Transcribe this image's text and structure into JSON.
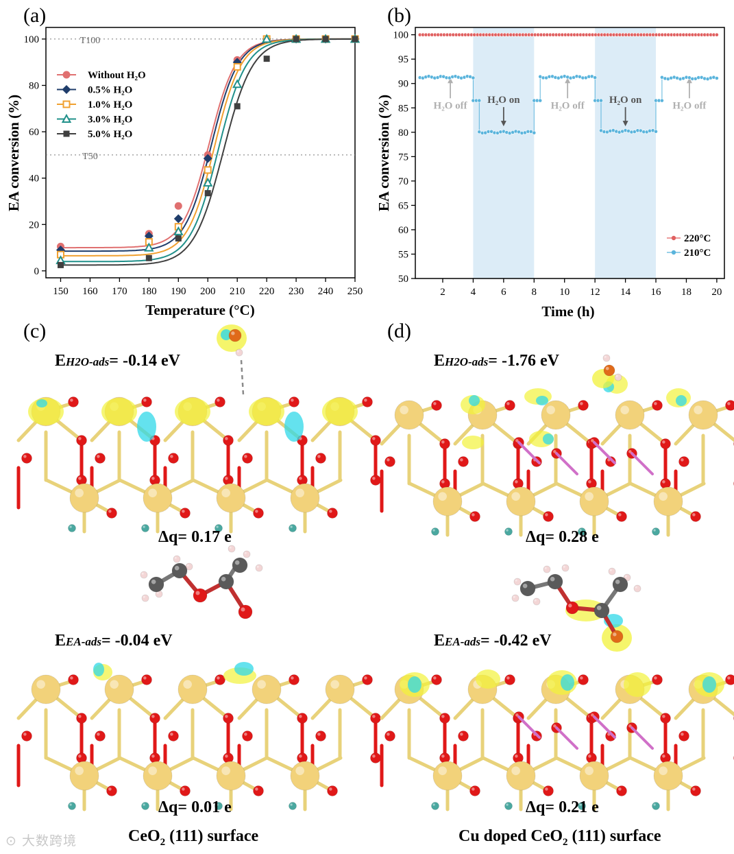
{
  "panels": {
    "a": {
      "label": "(a)"
    },
    "b": {
      "label": "(b)"
    },
    "c": {
      "label": "(c)",
      "e_h2o_prefix": "E",
      "e_h2o_sub": "H2O-ads",
      "e_h2o_value": "= -0.14 eV",
      "dq_h2o": "Δq= 0.17 e",
      "e_ea_prefix": "E",
      "e_ea_sub": "EA-ads",
      "e_ea_value": "= -0.04 eV",
      "dq_ea": "Δq= 0.01 e",
      "surface_pre": "CeO",
      "surface_sub": "2",
      "surface_post": " (111) surface"
    },
    "d": {
      "label": "(d)",
      "e_h2o_prefix": "E",
      "e_h2o_sub": "H2O-ads",
      "e_h2o_value": "= -1.76 eV",
      "dq_h2o": "Δq= 0.28 e",
      "e_ea_prefix": "E",
      "e_ea_sub": "EA-ads",
      "e_ea_value": "= -0.42 eV",
      "dq_ea": "Δq= 0.21 e",
      "surface_pre": "Cu doped CeO",
      "surface_sub": "2",
      "surface_post": " (111) surface"
    }
  },
  "watermark": "大数跨境",
  "colors": {
    "without_h2o": "#e07070",
    "h2o_05": "#1f3d6b",
    "h2o_10": "#f0a030",
    "h2o_30": "#20908a",
    "h2o_50": "#404040",
    "t220": "#e06060",
    "t210": "#5ab4dc",
    "h2o_on_band": "#dcecf7",
    "ce_atom": "#f2d27a",
    "o_atom": "#e01818",
    "c_atom": "#5a5a5a",
    "h_atom": "#f3d6d6",
    "density_yellow": "#f2f23a",
    "density_cyan": "#30d8e8"
  },
  "chart_data": [
    {
      "type": "scatter",
      "title": "",
      "xlabel": "Temperature (°C)",
      "ylabel": "EA conversion (%)",
      "xlim": [
        145,
        250
      ],
      "ylim": [
        -3,
        105
      ],
      "x_ticks": [
        150,
        160,
        170,
        180,
        190,
        200,
        210,
        220,
        230,
        240,
        250
      ],
      "y_ticks": [
        0,
        20,
        40,
        60,
        80,
        100
      ],
      "grid": false,
      "legend_position": "top-left",
      "reference_lines": [
        {
          "y": 100,
          "label": "T100"
        },
        {
          "y": 50,
          "label": "T50"
        }
      ],
      "x": [
        150,
        180,
        190,
        200,
        210,
        220,
        230,
        240,
        250
      ],
      "series": [
        {
          "name": "Without H₂O",
          "marker": "circle",
          "values": [
            10.5,
            16,
            28,
            50,
            91,
            100,
            100,
            100,
            100
          ],
          "fit": {
            "base": 10,
            "k": 0.22,
            "x50": 200.5
          }
        },
        {
          "name": "0.5% H₂O",
          "marker": "diamond",
          "values": [
            9,
            15,
            22.5,
            48.5,
            90,
            100,
            100,
            100,
            100
          ],
          "fit": {
            "base": 8.5,
            "k": 0.22,
            "x50": 201.2
          }
        },
        {
          "name": "1.0% H₂O",
          "marker": "open-square",
          "values": [
            7,
            12.5,
            19,
            43.5,
            88,
            100,
            100,
            100,
            100
          ],
          "fit": {
            "base": 6.5,
            "k": 0.22,
            "x50": 202.2
          }
        },
        {
          "name": "3.0% H₂O",
          "marker": "open-triangle",
          "values": [
            4.5,
            10,
            17,
            38,
            80.5,
            100,
            100,
            100,
            100
          ],
          "fit": {
            "base": 4,
            "k": 0.21,
            "x50": 203.5
          }
        },
        {
          "name": "5.0% H₂O",
          "marker": "square",
          "values": [
            2.5,
            5.5,
            14,
            33.5,
            71,
            91.5,
            100,
            100,
            100
          ],
          "fit": {
            "base": 2.5,
            "k": 0.2,
            "x50": 205.2
          }
        }
      ]
    },
    {
      "type": "line",
      "title": "",
      "xlabel": "Time (h)",
      "ylabel": "EA conversion (%)",
      "xlim": [
        0.2,
        20.5
      ],
      "ylim": [
        50,
        101.5
      ],
      "x_ticks": [
        2,
        4,
        6,
        8,
        10,
        12,
        14,
        16,
        18,
        20
      ],
      "y_ticks": [
        50,
        55,
        60,
        65,
        70,
        75,
        80,
        85,
        90,
        95,
        100
      ],
      "grid": false,
      "legend_position": "bottom-right",
      "shaded_intervals": [
        {
          "x": [
            4,
            8
          ]
        },
        {
          "x": [
            12,
            16
          ]
        }
      ],
      "annotations": [
        {
          "text": "H₂O off",
          "x": 2.5,
          "y": 85,
          "direction": "up"
        },
        {
          "text": "H₂O on",
          "x": 6.0,
          "y": 86,
          "direction": "down"
        },
        {
          "text": "H₂O off",
          "x": 10.2,
          "y": 85,
          "direction": "up"
        },
        {
          "text": "H₂O on",
          "x": 14.0,
          "y": 86,
          "direction": "down"
        },
        {
          "text": "H₂O off",
          "x": 18.2,
          "y": 85,
          "direction": "up"
        }
      ],
      "series": [
        {
          "name": "220°C",
          "segments": [
            {
              "x_range": [
                0.5,
                20
              ],
              "value": 100
            }
          ]
        },
        {
          "name": "210°C",
          "segments": [
            {
              "x_range": [
                0.5,
                4
              ],
              "value": 91.3
            },
            {
              "x_range": [
                4,
                4.4
              ],
              "value": 86.5
            },
            {
              "x_range": [
                4.4,
                8
              ],
              "value": 80
            },
            {
              "x_range": [
                8,
                8.4
              ],
              "value": 86.5
            },
            {
              "x_range": [
                8.4,
                12
              ],
              "value": 91.3
            },
            {
              "x_range": [
                12,
                12.4
              ],
              "value": 86.5
            },
            {
              "x_range": [
                12.4,
                16
              ],
              "value": 80.2
            },
            {
              "x_range": [
                16,
                16.4
              ],
              "value": 86.5
            },
            {
              "x_range": [
                16.4,
                20
              ],
              "value": 91.1
            }
          ]
        }
      ]
    }
  ]
}
